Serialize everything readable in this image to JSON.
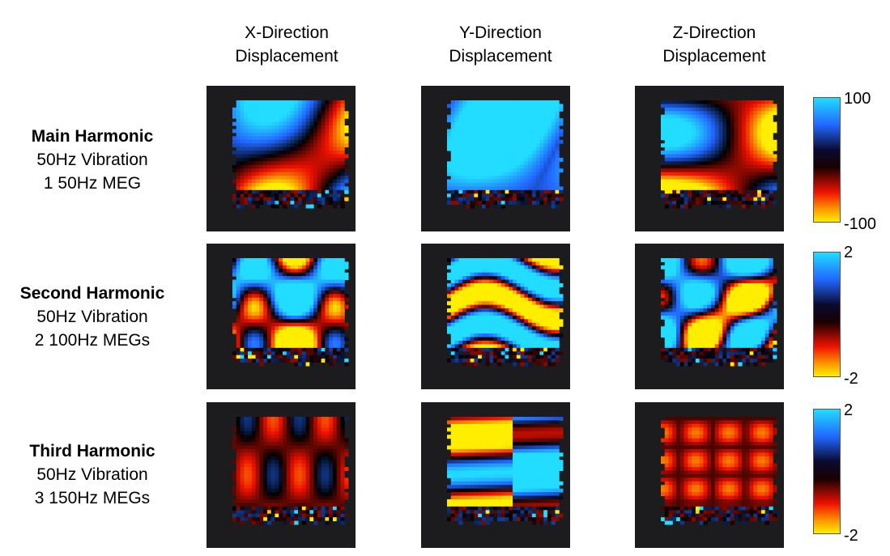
{
  "columns": [
    {
      "line1": "X-Direction",
      "line2": "Displacement"
    },
    {
      "line1": "Y-Direction",
      "line2": "Displacement"
    },
    {
      "line1": "Z-Direction",
      "line2": "Displacement"
    }
  ],
  "rows": [
    {
      "title": "Main Harmonic",
      "line2": "50Hz Vibration",
      "line3": "1 50Hz MEG",
      "colorbar": {
        "max": "100",
        "min": "-100"
      }
    },
    {
      "title": "Second Harmonic",
      "line2": "50Hz Vibration",
      "line3": "2 100Hz MEGs",
      "colorbar": {
        "max": "2",
        "min": "-2"
      }
    },
    {
      "title": "Third Harmonic",
      "line2": "50Hz Vibration",
      "line3": "3 150Hz MEGs",
      "colorbar": {
        "max": "2",
        "min": "-2"
      }
    }
  ],
  "colormap": {
    "high": "#22ddff",
    "mid_high": "#2266ff",
    "zero": "#000000",
    "mid_low": "#ee1100",
    "low": "#ffee00",
    "panel_background": "#1c1c1e"
  }
}
